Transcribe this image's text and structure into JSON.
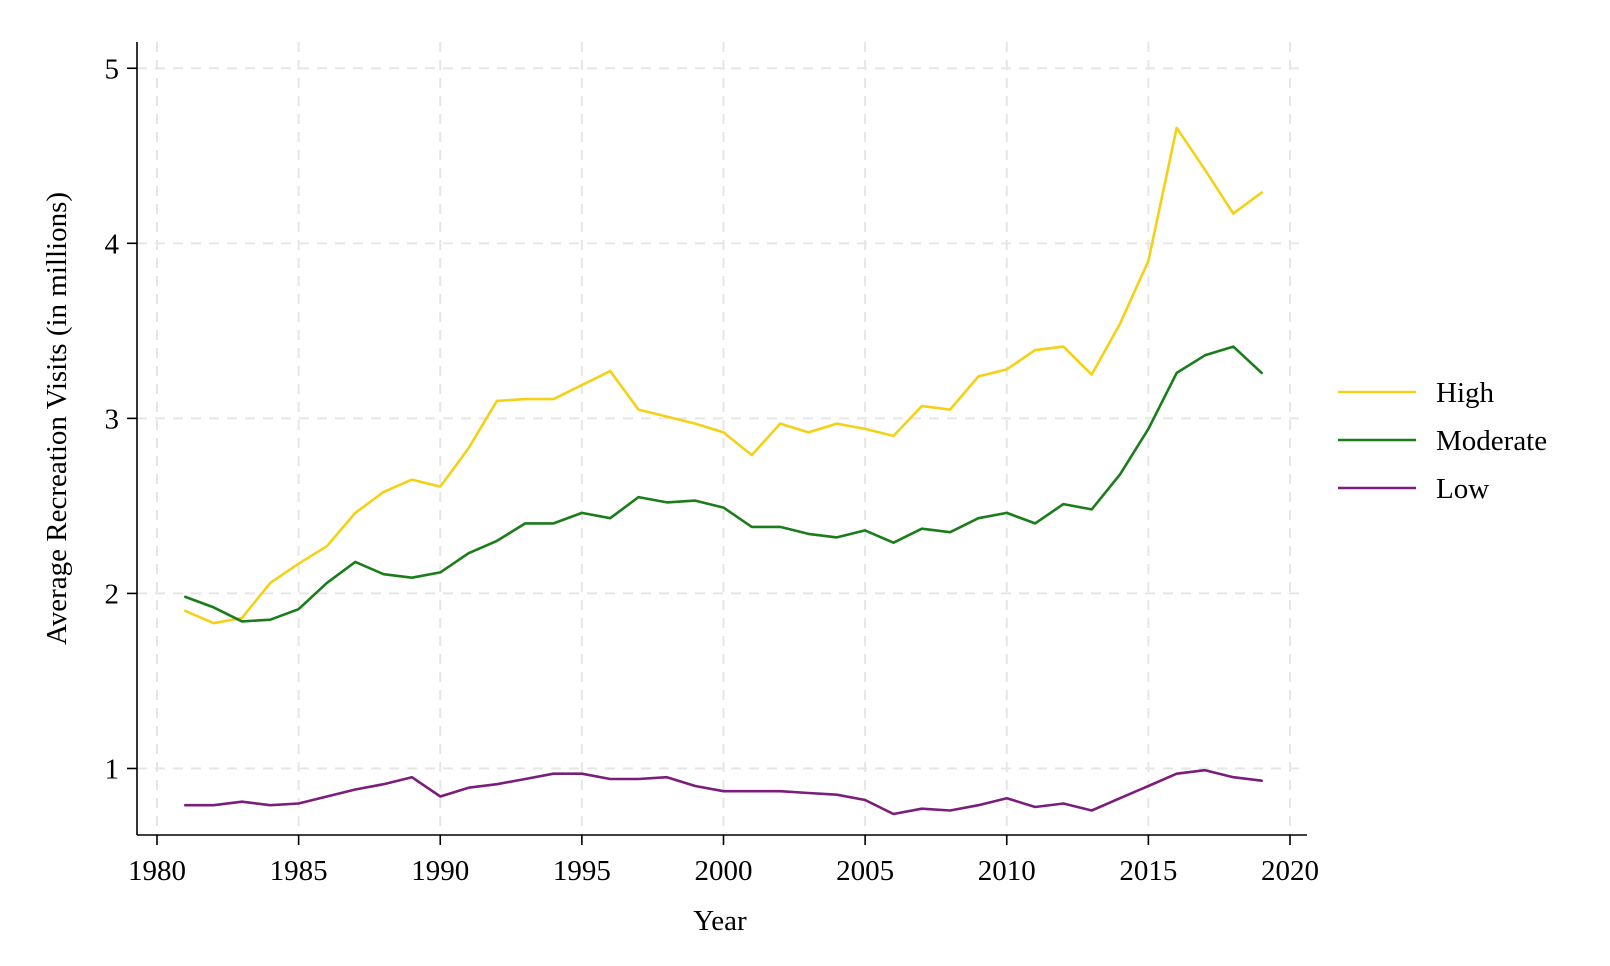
{
  "chart_data": {
    "type": "line",
    "xlabel": "Year",
    "ylabel": "Average Recreation Visits (in millions)",
    "xlim": [
      1980,
      2020
    ],
    "ylim": [
      0.62,
      5.15
    ],
    "xticks": [
      1980,
      1985,
      1990,
      1995,
      2000,
      2005,
      2010,
      2015,
      2020
    ],
    "yticks": [
      1,
      2,
      3,
      4,
      5
    ],
    "grid": true,
    "legend_position": "right",
    "x": [
      1981,
      1982,
      1983,
      1984,
      1985,
      1986,
      1987,
      1988,
      1989,
      1990,
      1991,
      1992,
      1993,
      1994,
      1995,
      1996,
      1997,
      1998,
      1999,
      2000,
      2001,
      2002,
      2003,
      2004,
      2005,
      2006,
      2007,
      2008,
      2009,
      2010,
      2011,
      2012,
      2013,
      2014,
      2015,
      2016,
      2017,
      2018,
      2019
    ],
    "series": [
      {
        "name": "High",
        "color": "#f5d116",
        "values": [
          1.9,
          1.83,
          1.86,
          2.06,
          2.17,
          2.27,
          2.46,
          2.58,
          2.65,
          2.61,
          2.83,
          3.1,
          3.11,
          3.11,
          3.19,
          3.27,
          3.05,
          3.01,
          2.97,
          2.92,
          2.79,
          2.97,
          2.92,
          2.97,
          2.94,
          2.9,
          3.07,
          3.05,
          3.24,
          3.28,
          3.39,
          3.41,
          3.25,
          3.54,
          3.9,
          4.66,
          4.42,
          4.17,
          4.29
        ]
      },
      {
        "name": "Moderate",
        "color": "#1a7d1a",
        "values": [
          1.98,
          1.92,
          1.84,
          1.85,
          1.91,
          2.06,
          2.18,
          2.11,
          2.09,
          2.12,
          2.23,
          2.3,
          2.4,
          2.4,
          2.46,
          2.43,
          2.55,
          2.52,
          2.53,
          2.49,
          2.38,
          2.38,
          2.34,
          2.32,
          2.36,
          2.29,
          2.37,
          2.35,
          2.43,
          2.46,
          2.4,
          2.51,
          2.48,
          2.68,
          2.94,
          3.26,
          3.36,
          3.41,
          3.26
        ]
      },
      {
        "name": "Low",
        "color": "#7b1e7b",
        "values": [
          0.79,
          0.79,
          0.81,
          0.79,
          0.8,
          0.84,
          0.88,
          0.91,
          0.95,
          0.84,
          0.89,
          0.91,
          0.94,
          0.97,
          0.97,
          0.94,
          0.94,
          0.95,
          0.9,
          0.87,
          0.87,
          0.87,
          0.86,
          0.85,
          0.82,
          0.74,
          0.77,
          0.76,
          0.79,
          0.83,
          0.78,
          0.8,
          0.76,
          0.83,
          0.9,
          0.97,
          0.99,
          0.95,
          0.93
        ]
      }
    ]
  }
}
